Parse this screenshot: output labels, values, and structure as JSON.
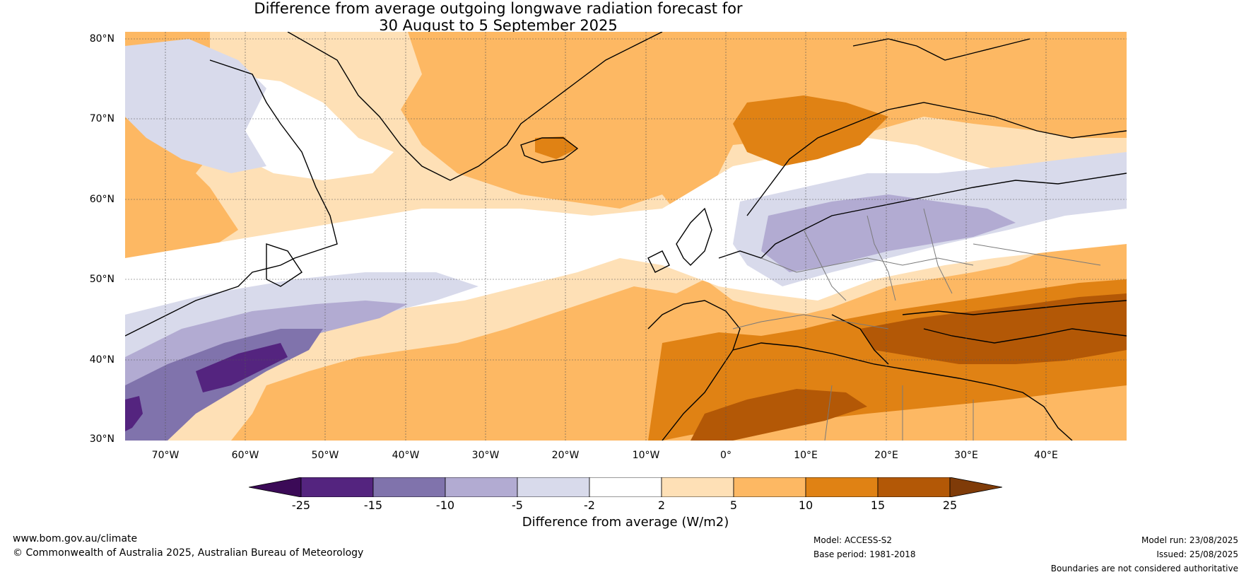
{
  "title": {
    "line1": "Difference from average outgoing longwave radiation forecast for",
    "line2": "30 August to 5 September 2025"
  },
  "map": {
    "lat_labels": [
      "80°N",
      "70°N",
      "60°N",
      "50°N",
      "40°N",
      "30°N"
    ],
    "lon_labels": [
      "70°W",
      "60°W",
      "50°W",
      "40°W",
      "30°W",
      "20°W",
      "10°W",
      "0°",
      "10°E",
      "20°E",
      "30°E",
      "40°E"
    ],
    "gridlines": true,
    "region": "North Atlantic, Greenland, Europe, North Africa"
  },
  "colorbar": {
    "title": "Difference from average (W/m2)",
    "ticks": [
      "-25",
      "-15",
      "-10",
      "-5",
      "-2",
      "2",
      "5",
      "10",
      "15",
      "25"
    ],
    "colors": [
      "#3b0a57",
      "#54247f",
      "#8073ac",
      "#b2abd2",
      "#d8daeb",
      "#ffffff",
      "#fee0b6",
      "#fdb863",
      "#e08214",
      "#b35806",
      "#7f3b08"
    ],
    "extend": "both"
  },
  "footer": {
    "website": "www.bom.gov.au/climate",
    "copyright": "© Commonwealth of Australia 2025, Australian Bureau of Meteorology",
    "model": "Model: ACCESS-S2",
    "base_period": "Base period: 1981-2018",
    "model_run": "Model run: 23/08/2025",
    "issued": "Issued: 25/08/2025",
    "disclaimer": "Boundaries are not considered authoritative"
  }
}
